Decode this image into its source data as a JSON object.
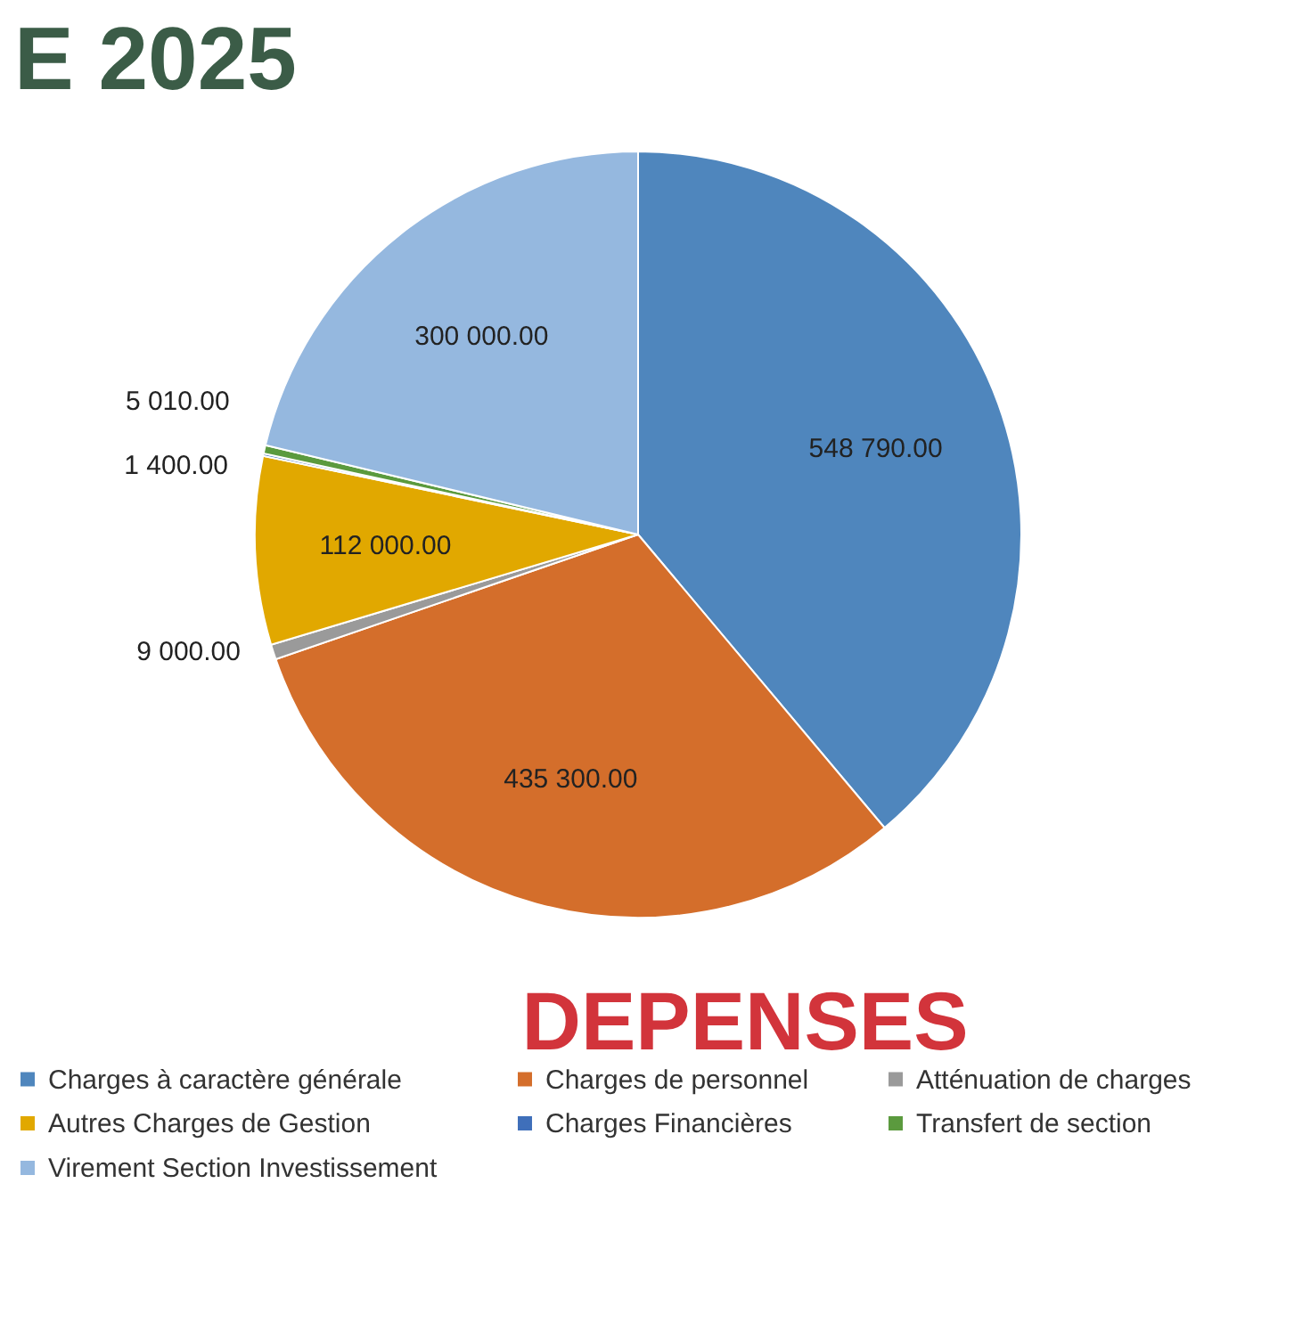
{
  "chart_data": {
    "type": "pie",
    "title": "E 2025",
    "categories": [
      "Charges à caractère générale",
      "Charges de personnel",
      "Atténuation de charges",
      "Autres Charges de Gestion",
      "Charges Financières",
      "Transfert de section",
      "Virement Section Investissement"
    ],
    "values": [
      548790,
      435300,
      9000,
      112000,
      1400,
      5010,
      300000
    ],
    "colors": [
      "#4f86bd",
      "#d46e2b",
      "#9a9a9a",
      "#e1a800",
      "#3f6fba",
      "#5b9a3e",
      "#95b8df"
    ],
    "value_labels": [
      "548 790.00",
      "435 300.00",
      "9 000.00",
      "112 000.00",
      "1 400.00",
      "5 010.00",
      "300 000.00"
    ],
    "legend": "bottom",
    "annotations": [
      "DEPENSES"
    ]
  }
}
